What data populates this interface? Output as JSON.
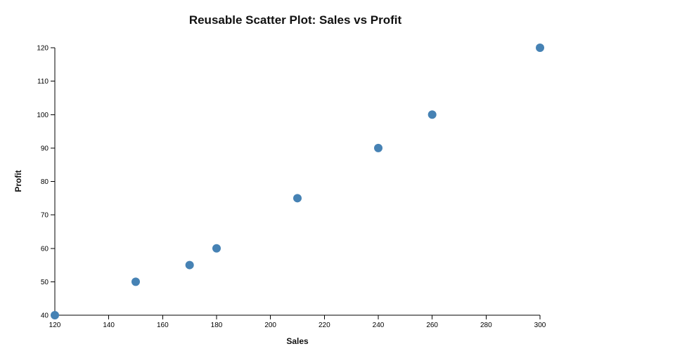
{
  "chart": {
    "title": "Reusable Scatter Plot: Sales vs Profit",
    "xlabel": "Sales",
    "ylabel": "Profit"
  },
  "chart_data": {
    "type": "scatter",
    "title": "Reusable Scatter Plot: Sales vs Profit",
    "xlabel": "Sales",
    "ylabel": "Profit",
    "xlim": [
      120,
      300
    ],
    "ylim": [
      40,
      120
    ],
    "x_ticks": [
      120,
      140,
      160,
      180,
      200,
      220,
      240,
      260,
      280,
      300
    ],
    "y_ticks": [
      40,
      50,
      60,
      70,
      80,
      90,
      100,
      110,
      120
    ],
    "points": [
      {
        "sales": 120,
        "profit": 40
      },
      {
        "sales": 150,
        "profit": 50
      },
      {
        "sales": 170,
        "profit": 55
      },
      {
        "sales": 180,
        "profit": 60
      },
      {
        "sales": 210,
        "profit": 75
      },
      {
        "sales": 240,
        "profit": 90
      },
      {
        "sales": 260,
        "profit": 100
      },
      {
        "sales": 300,
        "profit": 120
      }
    ],
    "point_color": "#4682b4",
    "point_radius": 6,
    "grid": false,
    "legend": false,
    "background": "#ffffff"
  }
}
